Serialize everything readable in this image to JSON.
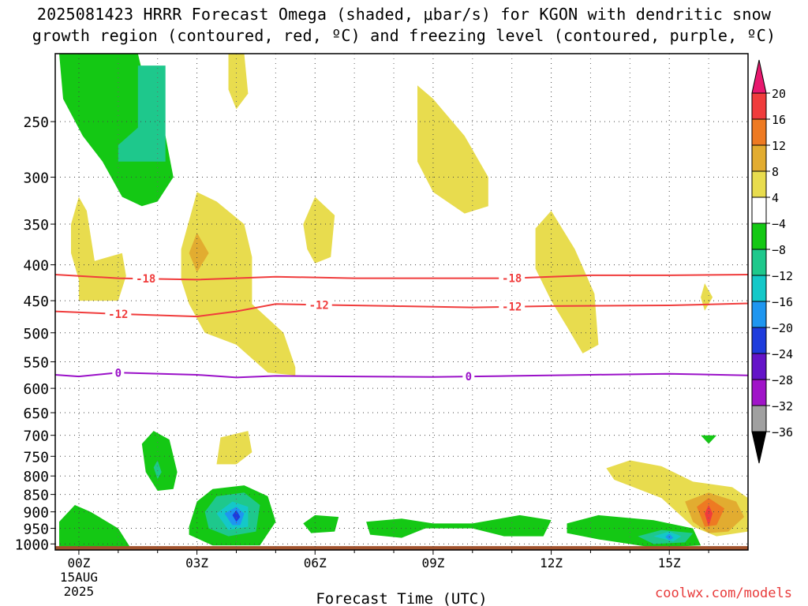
{
  "title_line1": "2025081423 HRRR Forecast Omega (shaded, μbar/s) for KGON with dendritic snow",
  "title_line2": "growth region (contoured, red, ºC) and freezing level (contoured, purple, ºC)",
  "credit": "coolwx.com/models",
  "chart_data": {
    "type": "contour",
    "title": "2025081423 HRRR Forecast Omega (shaded, μbar/s) for KGON with dendritic snow growth region (contoured, red, ºC) and freezing level (contoured, purple, ºC)",
    "xlabel": "Forecast Time (UTC)",
    "ylabel": "",
    "x_unit": "forecast hour",
    "xlim": [
      -0.6,
      17
    ],
    "y_scale": "log-pressure (inverted)",
    "ylim": [
      1020,
      200
    ],
    "grid": true,
    "x_ticks": [
      {
        "x": 0,
        "label": "00Z",
        "sublabel1": "15AUG",
        "sublabel2": "2025"
      },
      {
        "x": 3,
        "label": "03Z"
      },
      {
        "x": 6,
        "label": "06Z"
      },
      {
        "x": 9,
        "label": "09Z"
      },
      {
        "x": 12,
        "label": "12Z"
      },
      {
        "x": 15,
        "label": "15Z"
      }
    ],
    "y_ticks": [
      250,
      300,
      350,
      400,
      450,
      500,
      550,
      600,
      650,
      700,
      750,
      800,
      850,
      900,
      950,
      1000
    ],
    "colorbar": {
      "labels": [
        "20",
        "16",
        "12",
        "8",
        "4",
        "−4",
        "−8",
        "−12",
        "−16",
        "−20",
        "−24",
        "−28",
        "−32",
        "−36"
      ],
      "colors": [
        "#e8186e",
        "#f03c3c",
        "#ee7a22",
        "#e2ac30",
        "#e8dc4e",
        "#ffffff",
        "#14c814",
        "#1ec88c",
        "#14c8c8",
        "#1e96f0",
        "#1e3cdc",
        "#6414c8",
        "#a014c8",
        "#a0a0a0",
        "#000000"
      ]
    },
    "dgz_contours": [
      {
        "value": -18,
        "label": "-18",
        "color": "#f03c3c",
        "points": [
          [
            -0.6,
            413
          ],
          [
            1,
            418
          ],
          [
            3,
            420
          ],
          [
            5,
            416
          ],
          [
            7,
            418
          ],
          [
            9,
            418
          ],
          [
            11,
            418
          ],
          [
            13,
            414
          ],
          [
            15,
            414
          ],
          [
            17,
            413
          ]
        ],
        "label_x": [
          1.7,
          11.0
        ]
      },
      {
        "value": -12,
        "label": "-12",
        "color": "#f03c3c",
        "points": [
          [
            -0.6,
            466
          ],
          [
            1,
            470
          ],
          [
            3,
            474
          ],
          [
            4,
            466
          ],
          [
            5,
            455
          ],
          [
            6,
            456
          ],
          [
            8,
            458
          ],
          [
            10,
            460
          ],
          [
            12,
            458
          ],
          [
            15,
            457
          ],
          [
            17,
            454
          ]
        ],
        "label_x": [
          1.0,
          6.1,
          11.0
        ]
      }
    ],
    "freezing_contour": {
      "value": 0,
      "label": "0",
      "color": "#9a10c8",
      "points": [
        [
          -0.6,
          574
        ],
        [
          0,
          577
        ],
        [
          1,
          570
        ],
        [
          3,
          574
        ],
        [
          4,
          579
        ],
        [
          5,
          576
        ],
        [
          7,
          577
        ],
        [
          9,
          578
        ],
        [
          11,
          576
        ],
        [
          13,
          574
        ],
        [
          15,
          572
        ],
        [
          17,
          575
        ]
      ],
      "label_x": [
        1.0,
        9.9
      ]
    },
    "omega_regions": [
      {
        "value": -6,
        "color": "#14c814",
        "points": [
          [
            -0.5,
            200
          ],
          [
            1.5,
            200
          ],
          [
            1.8,
            235
          ],
          [
            2.2,
            262
          ],
          [
            2.4,
            300
          ],
          [
            2.0,
            325
          ],
          [
            1.6,
            330
          ],
          [
            1.1,
            320
          ],
          [
            0.6,
            285
          ],
          [
            0.1,
            262
          ],
          [
            -0.4,
            232
          ]
        ]
      },
      {
        "value": -10,
        "color": "#1ec88c",
        "points": [
          [
            1.5,
            208
          ],
          [
            2.2,
            208
          ],
          [
            2.2,
            285
          ],
          [
            1.0,
            285
          ],
          [
            1.0,
            270
          ],
          [
            1.5,
            255
          ]
        ]
      },
      {
        "value": 6,
        "color": "#e8dc4e",
        "points": [
          [
            3.8,
            200
          ],
          [
            4.2,
            200
          ],
          [
            4.3,
            228
          ],
          [
            4.0,
            240
          ],
          [
            3.8,
            225
          ]
        ]
      },
      {
        "value": 6,
        "color": "#e8dc4e",
        "points": [
          [
            8.6,
            222
          ],
          [
            9.0,
            232
          ],
          [
            9.8,
            262
          ],
          [
            10.4,
            300
          ],
          [
            10.4,
            330
          ],
          [
            9.8,
            338
          ],
          [
            9.0,
            315
          ],
          [
            8.6,
            285
          ],
          [
            8.6,
            235
          ]
        ]
      },
      {
        "value": 6,
        "color": "#e8dc4e",
        "points": [
          [
            -0.2,
            350
          ],
          [
            0.0,
            320
          ],
          [
            0.2,
            335
          ],
          [
            0.4,
            395
          ],
          [
            1.1,
            385
          ],
          [
            1.2,
            415
          ],
          [
            1.0,
            450
          ],
          [
            0.0,
            450
          ],
          [
            0.0,
            420
          ],
          [
            -0.2,
            385
          ]
        ]
      },
      {
        "value": 6,
        "color": "#e8dc4e",
        "points": [
          [
            2.6,
            380
          ],
          [
            3.0,
            315
          ],
          [
            3.5,
            325
          ],
          [
            4.2,
            350
          ],
          [
            4.4,
            390
          ],
          [
            4.4,
            455
          ],
          [
            5.2,
            500
          ],
          [
            5.5,
            560
          ],
          [
            5.5,
            575
          ],
          [
            4.8,
            570
          ],
          [
            4.0,
            520
          ],
          [
            3.2,
            500
          ],
          [
            2.8,
            455
          ],
          [
            2.6,
            420
          ]
        ]
      },
      {
        "value": 10,
        "color": "#e2ac30",
        "points": [
          [
            3.0,
            360
          ],
          [
            3.3,
            385
          ],
          [
            3.0,
            410
          ],
          [
            2.8,
            385
          ]
        ]
      },
      {
        "value": 6,
        "color": "#e8dc4e",
        "points": [
          [
            5.7,
            350
          ],
          [
            6.0,
            320
          ],
          [
            6.5,
            340
          ],
          [
            6.4,
            390
          ],
          [
            6.0,
            398
          ],
          [
            5.8,
            380
          ]
        ]
      },
      {
        "value": 6,
        "color": "#e8dc4e",
        "points": [
          [
            11.6,
            355
          ],
          [
            12.0,
            335
          ],
          [
            12.6,
            380
          ],
          [
            13.1,
            440
          ],
          [
            13.2,
            520
          ],
          [
            12.8,
            535
          ],
          [
            12.4,
            490
          ],
          [
            12.0,
            450
          ],
          [
            11.6,
            405
          ]
        ]
      },
      {
        "value": 6,
        "color": "#e8dc4e",
        "points": [
          [
            15.9,
            425
          ],
          [
            16.1,
            445
          ],
          [
            15.9,
            465
          ],
          [
            15.8,
            445
          ]
        ]
      },
      {
        "value": 6,
        "color": "#e8dc4e",
        "points": [
          [
            3.6,
            705
          ],
          [
            4.3,
            690
          ],
          [
            4.4,
            740
          ],
          [
            4.0,
            770
          ],
          [
            3.5,
            770
          ]
        ]
      },
      {
        "value": 6,
        "color": "#e8dc4e",
        "points": [
          [
            13.4,
            780
          ],
          [
            14.0,
            760
          ],
          [
            14.8,
            775
          ],
          [
            15.6,
            815
          ],
          [
            16.6,
            830
          ],
          [
            17.0,
            860
          ],
          [
            17.0,
            960
          ],
          [
            16.2,
            975
          ],
          [
            15.6,
            945
          ],
          [
            14.8,
            860
          ],
          [
            13.6,
            810
          ]
        ]
      },
      {
        "value": 10,
        "color": "#e2ac30",
        "points": [
          [
            15.4,
            870
          ],
          [
            16.0,
            845
          ],
          [
            16.7,
            870
          ],
          [
            16.9,
            915
          ],
          [
            16.5,
            960
          ],
          [
            16.0,
            965
          ],
          [
            15.6,
            930
          ]
        ]
      },
      {
        "value": 14,
        "color": "#ee7a22",
        "points": [
          [
            15.7,
            885
          ],
          [
            16.0,
            860
          ],
          [
            16.4,
            890
          ],
          [
            16.2,
            940
          ],
          [
            15.9,
            945
          ]
        ]
      },
      {
        "value": 18,
        "color": "#f03c3c",
        "points": [
          [
            15.9,
            905
          ],
          [
            16.0,
            880
          ],
          [
            16.1,
            905
          ],
          [
            16.0,
            945
          ]
        ]
      },
      {
        "value": -6,
        "color": "#14c814",
        "points": [
          [
            1.6,
            720
          ],
          [
            1.9,
            690
          ],
          [
            2.3,
            710
          ],
          [
            2.5,
            790
          ],
          [
            2.4,
            835
          ],
          [
            2.0,
            840
          ],
          [
            1.7,
            790
          ]
        ]
      },
      {
        "value": -10,
        "color": "#1ec88c",
        "points": [
          [
            1.9,
            778
          ],
          [
            2.0,
            760
          ],
          [
            2.1,
            790
          ],
          [
            2.0,
            808
          ]
        ]
      },
      {
        "value": -6,
        "color": "#14c814",
        "points": [
          [
            15.8,
            700
          ],
          [
            16.2,
            700
          ],
          [
            16.0,
            720
          ]
        ]
      },
      {
        "value": -6,
        "color": "#14c814",
        "points": [
          [
            -0.5,
            930
          ],
          [
            -0.1,
            880
          ],
          [
            0.3,
            900
          ],
          [
            1.0,
            950
          ],
          [
            1.3,
            1010
          ],
          [
            0.4,
            1015
          ],
          [
            -0.5,
            1010
          ]
        ]
      },
      {
        "value": -6,
        "color": "#14c814",
        "points": [
          [
            2.8,
            945
          ],
          [
            3.0,
            870
          ],
          [
            3.4,
            835
          ],
          [
            4.2,
            825
          ],
          [
            4.8,
            855
          ],
          [
            5.0,
            930
          ],
          [
            4.6,
            1005
          ],
          [
            3.4,
            1005
          ],
          [
            2.8,
            970
          ]
        ]
      },
      {
        "value": -10,
        "color": "#1ec88c",
        "points": [
          [
            3.2,
            900
          ],
          [
            3.5,
            855
          ],
          [
            4.2,
            845
          ],
          [
            4.6,
            880
          ],
          [
            4.5,
            960
          ],
          [
            3.8,
            975
          ],
          [
            3.3,
            950
          ]
        ]
      },
      {
        "value": -14,
        "color": "#14c8c8",
        "points": [
          [
            3.5,
            905
          ],
          [
            3.9,
            870
          ],
          [
            4.3,
            885
          ],
          [
            4.3,
            945
          ],
          [
            3.8,
            955
          ]
        ]
      },
      {
        "value": -18,
        "color": "#1e96f0",
        "points": [
          [
            3.7,
            905
          ],
          [
            4.0,
            885
          ],
          [
            4.2,
            905
          ],
          [
            4.1,
            940
          ],
          [
            3.9,
            940
          ]
        ]
      },
      {
        "value": -22,
        "color": "#1e3cdc",
        "points": [
          [
            3.9,
            910
          ],
          [
            4.0,
            895
          ],
          [
            4.1,
            915
          ],
          [
            4.0,
            930
          ]
        ]
      },
      {
        "value": -6,
        "color": "#14c814",
        "points": [
          [
            5.7,
            935
          ],
          [
            6.0,
            910
          ],
          [
            6.6,
            915
          ],
          [
            6.5,
            960
          ],
          [
            5.9,
            965
          ]
        ]
      },
      {
        "value": -6,
        "color": "#14c814",
        "points": [
          [
            7.3,
            930
          ],
          [
            8.2,
            920
          ],
          [
            9.0,
            935
          ],
          [
            10.0,
            935
          ],
          [
            11.2,
            910
          ],
          [
            12.0,
            925
          ],
          [
            11.8,
            975
          ],
          [
            10.8,
            975
          ],
          [
            10.0,
            950
          ],
          [
            8.8,
            950
          ],
          [
            8.2,
            980
          ],
          [
            7.4,
            970
          ]
        ]
      },
      {
        "value": -6,
        "color": "#14c814",
        "points": [
          [
            12.4,
            935
          ],
          [
            13.2,
            910
          ],
          [
            14.6,
            925
          ],
          [
            15.6,
            950
          ],
          [
            15.8,
            1005
          ],
          [
            14.6,
            1012
          ],
          [
            13.2,
            985
          ],
          [
            12.4,
            965
          ]
        ]
      },
      {
        "value": -10,
        "color": "#1ec88c",
        "points": [
          [
            14.2,
            975
          ],
          [
            14.8,
            955
          ],
          [
            15.6,
            965
          ],
          [
            15.4,
            995
          ],
          [
            14.6,
            1000
          ]
        ]
      },
      {
        "value": -14,
        "color": "#14c8c8",
        "points": [
          [
            14.6,
            975
          ],
          [
            15.0,
            960
          ],
          [
            15.3,
            975
          ],
          [
            15.1,
            992
          ]
        ]
      },
      {
        "value": -18,
        "color": "#1e96f0",
        "points": [
          [
            14.9,
            977
          ],
          [
            15.0,
            967
          ],
          [
            15.1,
            980
          ],
          [
            15.0,
            988
          ]
        ]
      }
    ],
    "terrain_color": "#a0522d",
    "terrain_top_hpa": 1015
  }
}
